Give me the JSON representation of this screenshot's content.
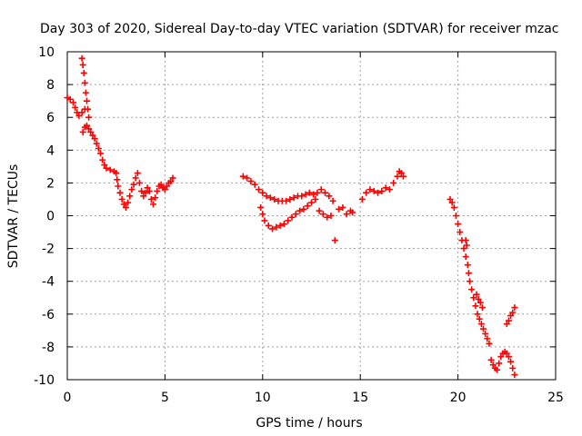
{
  "chart_data": {
    "type": "scatter",
    "title": "Day 303 of 2020, Sidereal Day-to-day VTEC variation (SDTVAR) for receiver mzac",
    "xlabel": "GPS time / hours",
    "ylabel": "SDTVAR / TECUs",
    "xlim": [
      0,
      25
    ],
    "ylim": [
      -10,
      10
    ],
    "xticks": [
      0,
      5,
      10,
      15,
      20,
      25
    ],
    "yticks": [
      -10,
      -8,
      -6,
      -4,
      -2,
      0,
      2,
      4,
      6,
      8,
      10
    ],
    "grid": true,
    "marker": "+",
    "series": [
      {
        "name": "SDTVAR",
        "color": "#ff0000",
        "points": [
          [
            0.0,
            7.2
          ],
          [
            0.15,
            7.1
          ],
          [
            0.3,
            6.9
          ],
          [
            0.4,
            6.6
          ],
          [
            0.5,
            6.3
          ],
          [
            0.6,
            6.1
          ],
          [
            0.75,
            6.3
          ],
          [
            0.9,
            6.5
          ],
          [
            0.75,
            9.6
          ],
          [
            0.8,
            9.2
          ],
          [
            0.85,
            8.7
          ],
          [
            0.9,
            8.1
          ],
          [
            0.95,
            7.5
          ],
          [
            1.0,
            7.0
          ],
          [
            1.05,
            6.5
          ],
          [
            1.1,
            6.0
          ],
          [
            0.8,
            5.1
          ],
          [
            0.9,
            5.4
          ],
          [
            1.0,
            5.5
          ],
          [
            1.1,
            5.3
          ],
          [
            1.2,
            5.1
          ],
          [
            1.3,
            4.9
          ],
          [
            1.4,
            4.7
          ],
          [
            1.5,
            4.4
          ],
          [
            1.6,
            4.1
          ],
          [
            1.7,
            3.8
          ],
          [
            1.8,
            3.4
          ],
          [
            1.9,
            3.1
          ],
          [
            2.0,
            2.9
          ],
          [
            2.2,
            2.8
          ],
          [
            2.4,
            2.7
          ],
          [
            2.5,
            2.6
          ],
          [
            2.55,
            2.2
          ],
          [
            2.6,
            1.8
          ],
          [
            2.7,
            1.4
          ],
          [
            2.8,
            1.0
          ],
          [
            2.9,
            0.7
          ],
          [
            3.0,
            0.5
          ],
          [
            3.1,
            0.8
          ],
          [
            3.2,
            1.2
          ],
          [
            3.3,
            1.6
          ],
          [
            3.4,
            1.9
          ],
          [
            3.5,
            2.3
          ],
          [
            3.6,
            2.6
          ],
          [
            3.7,
            2.0
          ],
          [
            3.8,
            1.5
          ],
          [
            3.9,
            1.2
          ],
          [
            4.0,
            1.4
          ],
          [
            4.1,
            1.7
          ],
          [
            4.2,
            1.5
          ],
          [
            4.3,
            1.0
          ],
          [
            4.4,
            0.7
          ],
          [
            4.5,
            1.1
          ],
          [
            4.6,
            1.5
          ],
          [
            4.7,
            1.8
          ],
          [
            4.8,
            1.9
          ],
          [
            4.9,
            1.7
          ],
          [
            5.0,
            1.6
          ],
          [
            5.1,
            1.8
          ],
          [
            5.2,
            2.0
          ],
          [
            5.3,
            2.1
          ],
          [
            5.4,
            2.3
          ],
          [
            9.0,
            2.4
          ],
          [
            9.2,
            2.3
          ],
          [
            9.4,
            2.1
          ],
          [
            9.6,
            1.9
          ],
          [
            9.8,
            1.6
          ],
          [
            10.0,
            1.4
          ],
          [
            10.2,
            1.2
          ],
          [
            10.4,
            1.1
          ],
          [
            10.6,
            1.0
          ],
          [
            10.8,
            0.9
          ],
          [
            11.0,
            0.9
          ],
          [
            11.2,
            0.9
          ],
          [
            11.4,
            1.0
          ],
          [
            11.6,
            1.1
          ],
          [
            11.8,
            1.2
          ],
          [
            12.0,
            1.2
          ],
          [
            9.9,
            0.5
          ],
          [
            10.0,
            0.1
          ],
          [
            10.1,
            -0.3
          ],
          [
            10.3,
            -0.6
          ],
          [
            10.5,
            -0.8
          ],
          [
            10.7,
            -0.7
          ],
          [
            10.9,
            -0.6
          ],
          [
            11.1,
            -0.5
          ],
          [
            11.3,
            -0.3
          ],
          [
            11.5,
            -0.1
          ],
          [
            11.7,
            0.1
          ],
          [
            11.9,
            0.3
          ],
          [
            12.1,
            0.4
          ],
          [
            12.3,
            0.6
          ],
          [
            12.5,
            0.8
          ],
          [
            12.7,
            1.0
          ],
          [
            12.2,
            1.3
          ],
          [
            12.4,
            1.4
          ],
          [
            12.6,
            1.3
          ],
          [
            12.8,
            1.4
          ],
          [
            13.0,
            1.6
          ],
          [
            13.2,
            1.4
          ],
          [
            13.4,
            1.2
          ],
          [
            13.6,
            0.9
          ],
          [
            12.9,
            0.3
          ],
          [
            13.1,
            0.1
          ],
          [
            13.3,
            -0.1
          ],
          [
            13.5,
            0.0
          ],
          [
            13.7,
            -1.5
          ],
          [
            13.9,
            0.4
          ],
          [
            14.1,
            0.5
          ],
          [
            14.3,
            0.1
          ],
          [
            14.5,
            0.3
          ],
          [
            14.6,
            0.2
          ],
          [
            15.1,
            1.0
          ],
          [
            15.3,
            1.4
          ],
          [
            15.5,
            1.6
          ],
          [
            15.7,
            1.5
          ],
          [
            15.9,
            1.4
          ],
          [
            16.1,
            1.5
          ],
          [
            16.3,
            1.7
          ],
          [
            16.5,
            1.6
          ],
          [
            16.7,
            2.0
          ],
          [
            16.9,
            2.4
          ],
          [
            17.0,
            2.7
          ],
          [
            17.1,
            2.6
          ],
          [
            17.2,
            2.4
          ],
          [
            19.6,
            1.0
          ],
          [
            19.7,
            0.8
          ],
          [
            19.8,
            0.5
          ],
          [
            19.9,
            0.0
          ],
          [
            20.0,
            -0.5
          ],
          [
            20.1,
            -1.0
          ],
          [
            20.2,
            -1.5
          ],
          [
            20.3,
            -2.0
          ],
          [
            20.4,
            -2.5
          ],
          [
            20.5,
            -3.0
          ],
          [
            20.55,
            -3.5
          ],
          [
            20.6,
            -4.0
          ],
          [
            20.7,
            -4.5
          ],
          [
            20.8,
            -5.0
          ],
          [
            20.9,
            -5.5
          ],
          [
            21.0,
            -6.0
          ],
          [
            21.1,
            -6.3
          ],
          [
            21.2,
            -6.6
          ],
          [
            21.3,
            -6.9
          ],
          [
            21.4,
            -7.2
          ],
          [
            21.5,
            -7.5
          ],
          [
            21.6,
            -7.8
          ],
          [
            20.4,
            -1.5
          ],
          [
            20.45,
            -1.8
          ],
          [
            20.95,
            -4.8
          ],
          [
            21.05,
            -5.1
          ],
          [
            21.15,
            -5.3
          ],
          [
            21.25,
            -5.6
          ],
          [
            21.7,
            -8.8
          ],
          [
            21.8,
            -9.1
          ],
          [
            21.9,
            -9.3
          ],
          [
            22.0,
            -9.4
          ],
          [
            22.1,
            -9.0
          ],
          [
            22.2,
            -8.6
          ],
          [
            22.3,
            -8.4
          ],
          [
            22.4,
            -8.3
          ],
          [
            22.5,
            -8.4
          ],
          [
            22.6,
            -8.6
          ],
          [
            22.7,
            -8.9
          ],
          [
            22.8,
            -9.3
          ],
          [
            22.9,
            -9.7
          ],
          [
            22.5,
            -6.6
          ],
          [
            22.6,
            -6.4
          ],
          [
            22.7,
            -6.1
          ],
          [
            22.8,
            -5.9
          ],
          [
            22.9,
            -5.6
          ]
        ]
      }
    ]
  }
}
